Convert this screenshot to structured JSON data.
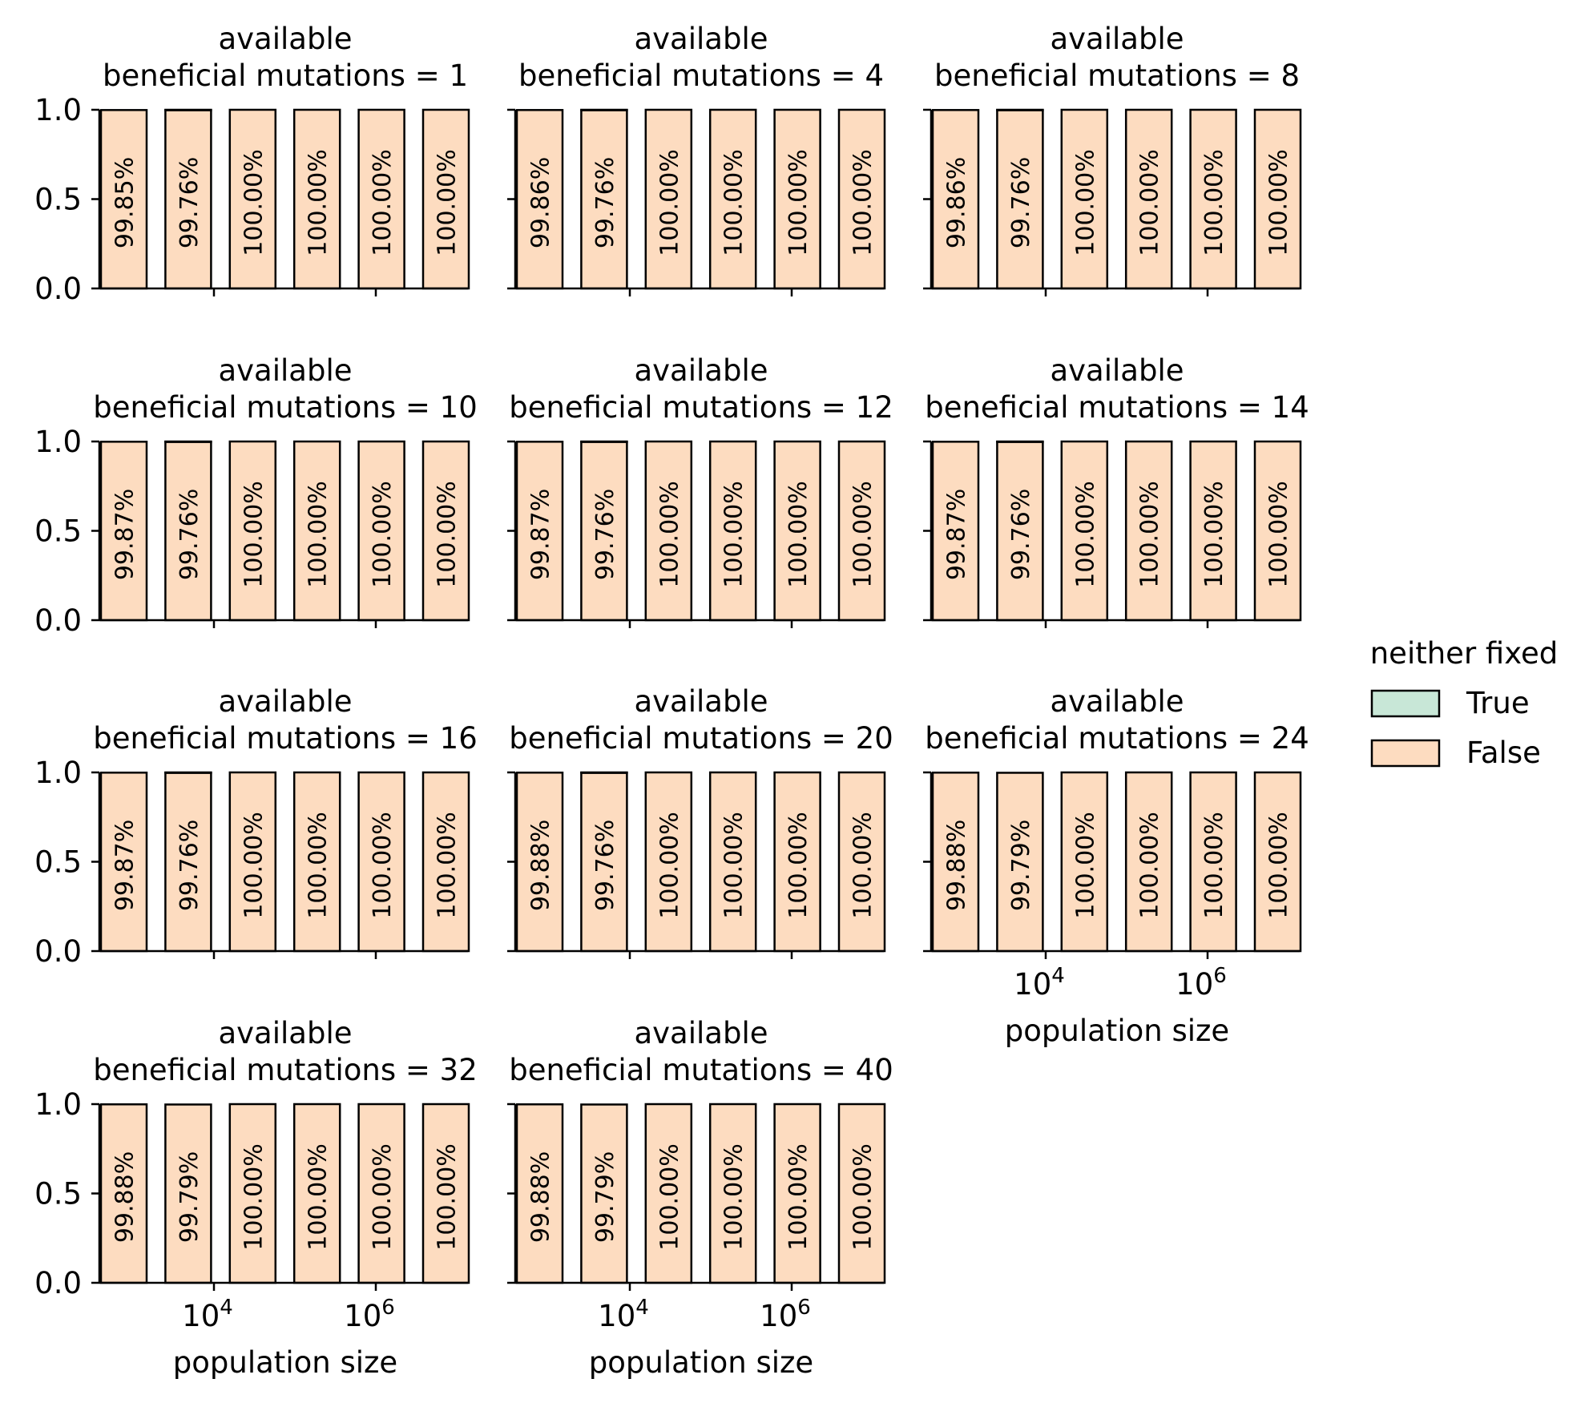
{
  "chart_data": {
    "type": "bar",
    "layout": "facet-grid",
    "stacked": true,
    "ylim": [
      0,
      1
    ],
    "yticks": [
      "0.0",
      "0.5",
      "1.0"
    ],
    "xscale": "log",
    "xtick_labels": [
      {
        "base": "10",
        "exp": "4"
      },
      {
        "base": "10",
        "exp": "6"
      }
    ],
    "xlabel": "population size",
    "colors": {
      "true": "#c8e7d7",
      "false": "#fddcc0",
      "edge": "#000000"
    },
    "legend": {
      "title": "neither fixed",
      "placement": "right",
      "entries": [
        {
          "label": "True",
          "color": "#c8e7d7"
        },
        {
          "label": "False",
          "color": "#fddcc0"
        }
      ]
    },
    "panels": [
      {
        "title_line1": "available",
        "title_line2": "beneficial mutations = 1",
        "false_values": [
          0.9985,
          0.9976,
          1.0,
          1.0,
          1.0,
          1.0
        ],
        "labels": [
          "99.85%",
          "99.76%",
          "100.00%",
          "100.00%",
          "100.00%",
          "100.00%"
        ]
      },
      {
        "title_line1": "available",
        "title_line2": "beneficial mutations = 4",
        "false_values": [
          0.9986,
          0.9976,
          1.0,
          1.0,
          1.0,
          1.0
        ],
        "labels": [
          "99.86%",
          "99.76%",
          "100.00%",
          "100.00%",
          "100.00%",
          "100.00%"
        ]
      },
      {
        "title_line1": "available",
        "title_line2": "beneficial mutations = 8",
        "false_values": [
          0.9986,
          0.9976,
          1.0,
          1.0,
          1.0,
          1.0
        ],
        "labels": [
          "99.86%",
          "99.76%",
          "100.00%",
          "100.00%",
          "100.00%",
          "100.00%"
        ]
      },
      {
        "title_line1": "available",
        "title_line2": "beneficial mutations = 10",
        "false_values": [
          0.9987,
          0.9976,
          1.0,
          1.0,
          1.0,
          1.0
        ],
        "labels": [
          "99.87%",
          "99.76%",
          "100.00%",
          "100.00%",
          "100.00%",
          "100.00%"
        ]
      },
      {
        "title_line1": "available",
        "title_line2": "beneficial mutations = 12",
        "false_values": [
          0.9987,
          0.9976,
          1.0,
          1.0,
          1.0,
          1.0
        ],
        "labels": [
          "99.87%",
          "99.76%",
          "100.00%",
          "100.00%",
          "100.00%",
          "100.00%"
        ]
      },
      {
        "title_line1": "available",
        "title_line2": "beneficial mutations = 14",
        "false_values": [
          0.9987,
          0.9976,
          1.0,
          1.0,
          1.0,
          1.0
        ],
        "labels": [
          "99.87%",
          "99.76%",
          "100.00%",
          "100.00%",
          "100.00%",
          "100.00%"
        ]
      },
      {
        "title_line1": "available",
        "title_line2": "beneficial mutations = 16",
        "false_values": [
          0.9987,
          0.9976,
          1.0,
          1.0,
          1.0,
          1.0
        ],
        "labels": [
          "99.87%",
          "99.76%",
          "100.00%",
          "100.00%",
          "100.00%",
          "100.00%"
        ]
      },
      {
        "title_line1": "available",
        "title_line2": "beneficial mutations = 20",
        "false_values": [
          0.9988,
          0.9976,
          1.0,
          1.0,
          1.0,
          1.0
        ],
        "labels": [
          "99.88%",
          "99.76%",
          "100.00%",
          "100.00%",
          "100.00%",
          "100.00%"
        ]
      },
      {
        "title_line1": "available",
        "title_line2": "beneficial mutations = 24",
        "false_values": [
          0.9988,
          0.9979,
          1.0,
          1.0,
          1.0,
          1.0
        ],
        "labels": [
          "99.88%",
          "99.79%",
          "100.00%",
          "100.00%",
          "100.00%",
          "100.00%"
        ]
      },
      {
        "title_line1": "available",
        "title_line2": "beneficial mutations = 32",
        "false_values": [
          0.9988,
          0.9979,
          1.0,
          1.0,
          1.0,
          1.0
        ],
        "labels": [
          "99.88%",
          "99.79%",
          "100.00%",
          "100.00%",
          "100.00%",
          "100.00%"
        ]
      },
      {
        "title_line1": "available",
        "title_line2": "beneficial mutations = 40",
        "false_values": [
          0.9988,
          0.9979,
          1.0,
          1.0,
          1.0,
          1.0
        ],
        "labels": [
          "99.88%",
          "99.79%",
          "100.00%",
          "100.00%",
          "100.00%",
          "100.00%"
        ]
      }
    ]
  }
}
